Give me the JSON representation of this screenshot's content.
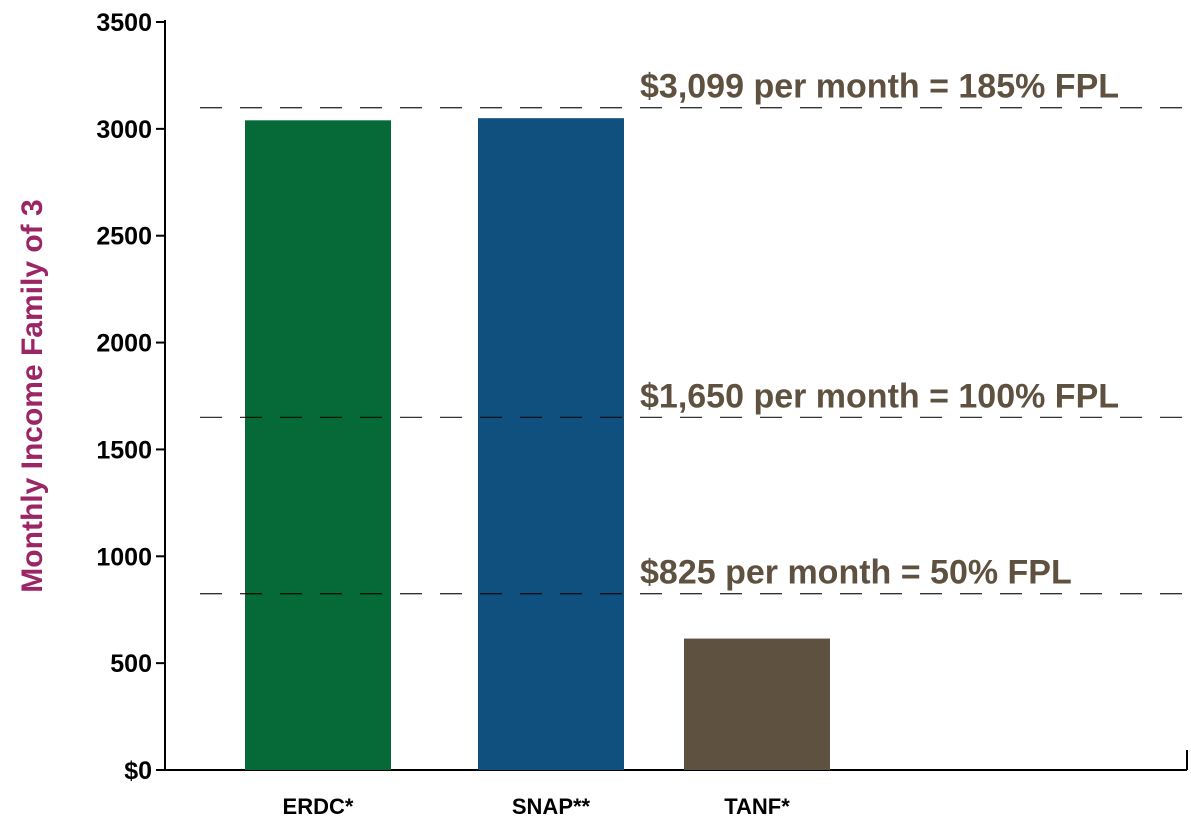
{
  "chart_data": {
    "type": "bar",
    "y_label": "Monthly Income Family of 3",
    "categories": [
      "ERDC*",
      "SNAP**",
      "TANF*"
    ],
    "values": [
      3040,
      3050,
      615
    ],
    "colors": [
      "#056a37",
      "#10507e",
      "#5e5140"
    ],
    "ylim": [
      0,
      3500
    ],
    "yticks": [
      {
        "value": 0,
        "label": "$0"
      },
      500,
      1000,
      1500,
      2000,
      2500,
      3000,
      3500
    ],
    "reference_lines": [
      {
        "value": 3099,
        "label": "$3,099 per month = 185% FPL"
      },
      {
        "value": 1650,
        "label": "$1,650 per month = 100% FPL"
      },
      {
        "value": 825,
        "label": "$825 per month = 50% FPL"
      }
    ],
    "reference_color": "#5e5140"
  }
}
